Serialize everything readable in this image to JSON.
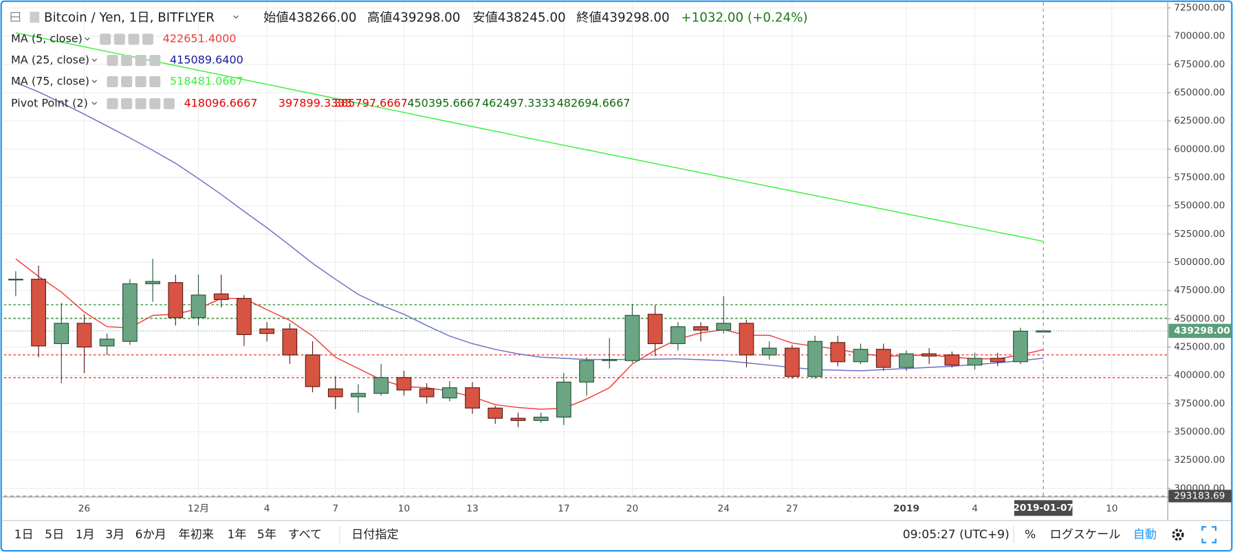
{
  "chart_data": {
    "type": "candlestick",
    "title": "Bitcoin / Yen, 1日, BITFLYER",
    "header_stats": [
      {
        "label": "始値",
        "value": 438266,
        "value_label": "438266.00"
      },
      {
        "label": "高値",
        "value": 439298,
        "value_label": "439298.00"
      },
      {
        "label": "安値",
        "value": 438245,
        "value_label": "438245.00"
      },
      {
        "label": "終値",
        "value": 439298,
        "value_label": "439298.00"
      }
    ],
    "change": "+1032.00 (+0.24%)",
    "categories": [
      null,
      null,
      null,
      "26",
      null,
      null,
      null,
      null,
      "12月",
      null,
      null,
      "4",
      null,
      null,
      "7",
      null,
      null,
      "10",
      null,
      null,
      "13",
      null,
      null,
      null,
      "17",
      null,
      null,
      "20",
      null,
      null,
      null,
      "24",
      null,
      null,
      "27",
      null,
      null,
      null,
      null,
      "2019",
      null,
      null,
      "4",
      null,
      null,
      null,
      null,
      null,
      "10",
      null,
      null
    ],
    "open": [
      484500,
      485000,
      428000,
      446000,
      426000,
      430000,
      481000,
      482000,
      451000,
      472000,
      468000,
      441000,
      441000,
      418000,
      388000,
      381000,
      384000,
      398000,
      388000,
      380000,
      389000,
      371000,
      362000,
      360000,
      363000,
      394000,
      413000,
      413000,
      454000,
      428000,
      443000,
      440000,
      446000,
      418000,
      424000,
      399000,
      429000,
      412000,
      423000,
      407000,
      419000,
      418000,
      409000,
      415000,
      412000,
      438266,
      null,
      null,
      null,
      null,
      null
    ],
    "high": [
      492000,
      497000,
      464000,
      454000,
      437000,
      485000,
      503000,
      489000,
      489000,
      489000,
      471000,
      447000,
      446000,
      430000,
      399000,
      392000,
      410000,
      404000,
      393000,
      395000,
      394000,
      373000,
      367000,
      367000,
      402000,
      416000,
      433000,
      463000,
      462000,
      447000,
      447000,
      470000,
      449000,
      430000,
      427000,
      435000,
      435000,
      428000,
      428000,
      422000,
      424000,
      421000,
      420000,
      420000,
      442000,
      439298,
      null,
      null,
      null,
      null,
      null
    ],
    "low": [
      470000,
      416000,
      393000,
      402000,
      418000,
      427000,
      465000,
      444000,
      444000,
      460000,
      426000,
      430000,
      410000,
      385000,
      370000,
      367000,
      382000,
      382000,
      375000,
      377000,
      366000,
      357000,
      354000,
      358000,
      356000,
      382000,
      406000,
      411000,
      417000,
      422000,
      430000,
      437000,
      407000,
      414000,
      397000,
      397000,
      408000,
      410000,
      404000,
      404000,
      410000,
      407000,
      405000,
      408000,
      410000,
      438245,
      null,
      null,
      null,
      null,
      null
    ],
    "close": [
      485000,
      426000,
      446000,
      425000,
      432000,
      481000,
      483000,
      451000,
      471000,
      467000,
      436000,
      437000,
      418000,
      390000,
      381000,
      384000,
      398000,
      387000,
      381000,
      389000,
      371000,
      362000,
      360000,
      363000,
      394000,
      413000,
      414000,
      453000,
      428000,
      443000,
      440000,
      446000,
      418000,
      424000,
      399000,
      430000,
      412000,
      423000,
      407000,
      419000,
      417000,
      409000,
      415000,
      412000,
      439000,
      439298,
      null,
      null,
      null,
      null,
      null
    ],
    "up_color": "#6ba583",
    "down_color": "#d75442",
    "series": [
      {
        "name": "MA (5, close)",
        "color": "#f23b3b",
        "legend_value": "422651.4000",
        "values": [
          503000,
          487500,
          473600,
          456000,
          443000,
          442000,
          453000,
          454000,
          459000,
          468000,
          468000,
          458000,
          448600,
          434700,
          416000,
          406000,
          396000,
          390000,
          389000,
          386000,
          381000,
          374000,
          371500,
          370000,
          370800,
          379000,
          389000,
          410000,
          422200,
          432000,
          437500,
          440300,
          435400,
          435400,
          428500,
          425700,
          423000,
          419400,
          416700,
          417400,
          418000,
          416000,
          414600,
          414600,
          418000,
          422651.4,
          null,
          null,
          null,
          null,
          null
        ]
      },
      {
        "name": "MA (25, close)",
        "color": "#6f6fc4",
        "legend_value": "415089.6400",
        "values": [
          659000,
          650700,
          641000,
          631000,
          620500,
          610000,
          599000,
          587500,
          574000,
          560000,
          545000,
          530500,
          515000,
          499000,
          485000,
          471500,
          462000,
          454000,
          444000,
          434700,
          428000,
          422900,
          419000,
          416000,
          415000,
          414000,
          414000,
          414000,
          414300,
          414600,
          413800,
          413000,
          411000,
          409000,
          407000,
          405000,
          404500,
          404000,
          405000,
          406000,
          407000,
          408000,
          409500,
          411000,
          413000,
          415089.64,
          null,
          null,
          null,
          null,
          null
        ]
      },
      {
        "name": "MA (75, close)",
        "color": "#3cf03c",
        "legend_value": "518481.0667",
        "values": [
          703000,
          698900,
          694700,
          690600,
          686400,
          682300,
          678100,
          674000,
          669800,
          665700,
          661500,
          657400,
          653200,
          649100,
          644900,
          640800,
          636600,
          632500,
          628300,
          624200,
          620000,
          615900,
          611700,
          607600,
          603500,
          599500,
          595400,
          591400,
          587300,
          583300,
          579200,
          575200,
          571100,
          567100,
          563000,
          559000,
          555000,
          550900,
          546900,
          542800,
          538800,
          534700,
          530700,
          526600,
          522600,
          518481.07,
          null,
          null,
          null,
          null,
          null
        ]
      }
    ],
    "pivot": {
      "name": "Pivot Point (2)",
      "levels": [
        {
          "value": 418096.6667,
          "color": "#f23b3b",
          "line": true
        },
        {
          "value": 397899.3333,
          "color": "#f23b3b",
          "line": true
        },
        {
          "value": 385797.6667,
          "color": "#f23b3b",
          "line": false
        },
        {
          "value": 450395.6667,
          "color": "#2e8b2e",
          "line": true
        },
        {
          "value": 462497.3333,
          "color": "#2e8b2e",
          "line": true
        },
        {
          "value": 482694.6667,
          "color": "#2e8b2e",
          "line": false
        }
      ]
    },
    "ylim": [
      293000,
      732000
    ],
    "yticks": [
      {
        "value": 725000,
        "label": "725000.00"
      },
      {
        "value": 700000,
        "label": "700000.00"
      },
      {
        "value": 675000,
        "label": "675000.00"
      },
      {
        "value": 650000,
        "label": "650000.00"
      },
      {
        "value": 625000,
        "label": "625000.00"
      },
      {
        "value": 600000,
        "label": "600000.00"
      },
      {
        "value": 575000,
        "label": "575000.00"
      },
      {
        "value": 550000,
        "label": "550000.00"
      },
      {
        "value": 525000,
        "label": "525000.00"
      },
      {
        "value": 500000,
        "label": "500000.00"
      },
      {
        "value": 475000,
        "label": "475000.00"
      },
      {
        "value": 450000,
        "label": "450000.00"
      },
      {
        "value": 425000,
        "label": "425000.00"
      },
      {
        "value": 400000,
        "label": "400000.00"
      },
      {
        "value": 375000,
        "label": "375000.00"
      },
      {
        "value": 350000,
        "label": "350000.00"
      },
      {
        "value": 325000,
        "label": "325000.00"
      },
      {
        "value": 300000,
        "label": "300000.00"
      }
    ],
    "grid": true,
    "last_price": {
      "value": 439298,
      "label": "439298.00",
      "color": "#5b9e7a"
    },
    "crosshair": {
      "date": "2019-01-07",
      "price": 293183.69,
      "price_label": "293183.69"
    }
  },
  "toolbar": {
    "ranges": [
      "1日",
      "5日",
      "1月",
      "3月",
      "6か月",
      "年初来",
      "1年",
      "5年",
      "すべて"
    ],
    "date_range": "日付指定",
    "time": "09:05:27 (UTC+9)",
    "percent": "%",
    "log_scale": "ログスケール",
    "auto": "自動"
  }
}
